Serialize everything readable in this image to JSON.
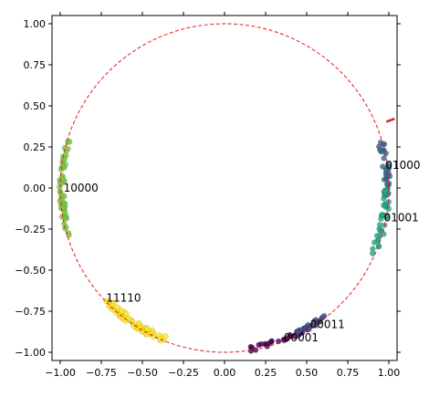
{
  "chart_data": {
    "type": "scatter",
    "title": "",
    "xlabel": "",
    "ylabel": "",
    "xlim": [
      -1.05,
      1.05
    ],
    "ylim": [
      -1.05,
      1.05
    ],
    "xticks": [
      "−1.00",
      "−0.75",
      "−0.50",
      "−0.25",
      "0.00",
      "0.25",
      "0.50",
      "0.75",
      "1.00"
    ],
    "yticks": [
      "1.00",
      "0.75",
      "0.50",
      "0.25",
      "0.00",
      "−0.25",
      "−0.50",
      "−0.75",
      "−1.00"
    ],
    "xtick_values": [
      -1.0,
      -0.75,
      -0.5,
      -0.25,
      0.0,
      0.25,
      0.5,
      0.75,
      1.0
    ],
    "ytick_values": [
      1.0,
      0.75,
      0.5,
      0.25,
      0.0,
      -0.25,
      -0.5,
      -0.75,
      -1.0
    ],
    "grid": false,
    "reference_circle": {
      "radius": 1.0,
      "style": "dashed",
      "color": "#e31a1c"
    },
    "clusters": [
      {
        "label": "10000",
        "color": "#7ac943",
        "center_angle_deg": 180,
        "spread_deg": 17,
        "radius_jitter": 0.015,
        "count": 60,
        "label_x": -0.98,
        "label_y": 0.0
      },
      {
        "label": "11110",
        "color": "#fde725",
        "center_angle_deg": 236,
        "spread_deg": 13,
        "radius_jitter": 0.02,
        "count": 70,
        "label_x": -0.72,
        "label_y": -0.67
      },
      {
        "label": "00001",
        "color": "#440154",
        "center_angle_deg": 292,
        "spread_deg": 14,
        "radius_jitter": 0.015,
        "count": 35,
        "label_x": 0.36,
        "label_y": -0.91
      },
      {
        "label": "00011",
        "color": "#3b528b",
        "center_angle_deg": 302,
        "spread_deg": 6,
        "radius_jitter": 0.015,
        "count": 20,
        "label_x": 0.52,
        "label_y": -0.83
      },
      {
        "label": "01000",
        "color": "#31688e",
        "center_angle_deg": 7,
        "spread_deg": 10,
        "radius_jitter": 0.02,
        "count": 35,
        "label_x": 0.98,
        "label_y": 0.14
      },
      {
        "label": "01001",
        "color": "#21a585",
        "center_angle_deg": -12,
        "spread_deg": 12,
        "radius_jitter": 0.02,
        "count": 35,
        "label_x": 0.97,
        "label_y": -0.18
      }
    ],
    "red_marker": {
      "color": "#d62728",
      "x1": 0.99,
      "y1": 0.405,
      "x2": 1.03,
      "y2": 0.42
    }
  }
}
